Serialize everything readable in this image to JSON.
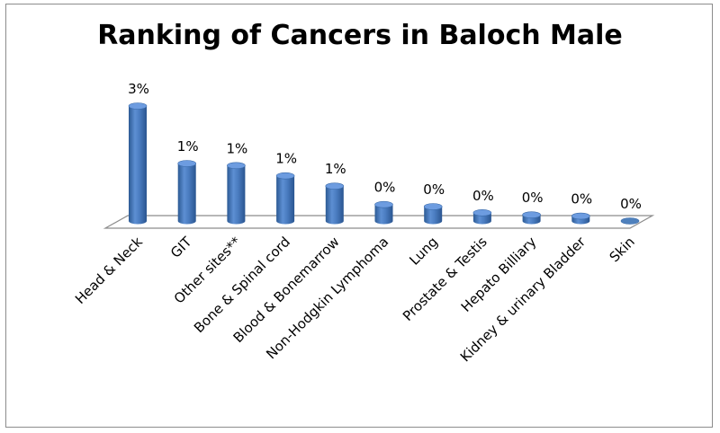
{
  "chart_data": {
    "type": "bar",
    "title": "Ranking of Cancers in Baloch Male",
    "categories": [
      "Head & Neck",
      "GIT",
      "Other sites**",
      "Bone & Spinal cord",
      "Blood & Bonemarrow",
      "Non-Hodgkin Lymphoma",
      "Lung",
      "Prostate & Testis",
      "Hepato Billiary",
      "Kidney & urinary Bladder",
      "Skin"
    ],
    "values": [
      2.8,
      1.4,
      1.35,
      1.1,
      0.85,
      0.4,
      0.35,
      0.2,
      0.15,
      0.12,
      0.0
    ],
    "data_labels": [
      "3%",
      "1%",
      "1%",
      "1%",
      "1%",
      "0%",
      "0%",
      "0%",
      "0%",
      "0%",
      "0%"
    ],
    "ylim": [
      0,
      2.8
    ],
    "xlabel": "",
    "ylabel": "",
    "grid": false,
    "legend": "none",
    "bar_color": "#4f81bd",
    "style": "3d-cylinder"
  }
}
